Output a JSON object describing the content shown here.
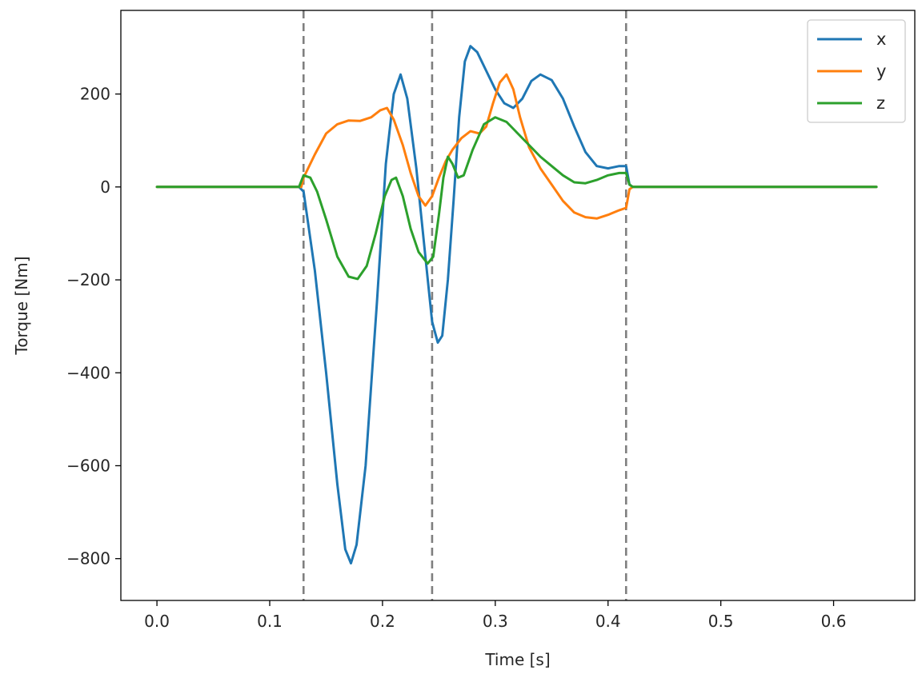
{
  "chart_data": {
    "type": "line",
    "title": "",
    "xlabel": "Time [s]",
    "ylabel": "Torque [Nm]",
    "xlim": [
      -0.032,
      0.672
    ],
    "ylim": [
      -890,
      380
    ],
    "xticks": [
      0.0,
      0.1,
      0.2,
      0.3,
      0.4,
      0.5,
      0.6
    ],
    "xtick_labels": [
      "0.0",
      "0.1",
      "0.2",
      "0.3",
      "0.4",
      "0.5",
      "0.6"
    ],
    "yticks": [
      -800,
      -600,
      -400,
      -200,
      0,
      200
    ],
    "ytick_labels": [
      "−800",
      "−600",
      "−400",
      "−200",
      "0",
      "200"
    ],
    "grid": false,
    "legend_position": "top-right",
    "vlines": [
      0.13,
      0.244,
      0.416
    ],
    "vline_color": "#7f7f7f",
    "series": [
      {
        "name": "x",
        "color": "#1f77b4",
        "points": [
          [
            0.0,
            0
          ],
          [
            0.126,
            0
          ],
          [
            0.13,
            -10
          ],
          [
            0.14,
            -180
          ],
          [
            0.15,
            -400
          ],
          [
            0.16,
            -640
          ],
          [
            0.167,
            -780
          ],
          [
            0.172,
            -810
          ],
          [
            0.177,
            -770
          ],
          [
            0.185,
            -600
          ],
          [
            0.195,
            -250
          ],
          [
            0.203,
            50
          ],
          [
            0.21,
            200
          ],
          [
            0.216,
            242
          ],
          [
            0.222,
            190
          ],
          [
            0.23,
            40
          ],
          [
            0.238,
            -150
          ],
          [
            0.244,
            -290
          ],
          [
            0.249,
            -335
          ],
          [
            0.253,
            -320
          ],
          [
            0.258,
            -200
          ],
          [
            0.263,
            -30
          ],
          [
            0.268,
            150
          ],
          [
            0.273,
            270
          ],
          [
            0.278,
            303
          ],
          [
            0.284,
            290
          ],
          [
            0.292,
            250
          ],
          [
            0.3,
            210
          ],
          [
            0.308,
            180
          ],
          [
            0.316,
            170
          ],
          [
            0.324,
            190
          ],
          [
            0.332,
            228
          ],
          [
            0.34,
            242
          ],
          [
            0.35,
            230
          ],
          [
            0.36,
            190
          ],
          [
            0.37,
            130
          ],
          [
            0.38,
            75
          ],
          [
            0.39,
            45
          ],
          [
            0.4,
            40
          ],
          [
            0.41,
            45
          ],
          [
            0.416,
            45
          ],
          [
            0.419,
            5
          ],
          [
            0.422,
            0
          ],
          [
            0.638,
            0
          ]
        ]
      },
      {
        "name": "y",
        "color": "#ff7f0e",
        "points": [
          [
            0.0,
            0
          ],
          [
            0.128,
            0
          ],
          [
            0.13,
            20
          ],
          [
            0.14,
            70
          ],
          [
            0.15,
            115
          ],
          [
            0.16,
            135
          ],
          [
            0.17,
            143
          ],
          [
            0.18,
            142
          ],
          [
            0.19,
            150
          ],
          [
            0.198,
            165
          ],
          [
            0.204,
            170
          ],
          [
            0.21,
            145
          ],
          [
            0.218,
            90
          ],
          [
            0.225,
            30
          ],
          [
            0.232,
            -20
          ],
          [
            0.238,
            -40
          ],
          [
            0.244,
            -20
          ],
          [
            0.25,
            20
          ],
          [
            0.256,
            55
          ],
          [
            0.262,
            80
          ],
          [
            0.27,
            105
          ],
          [
            0.278,
            120
          ],
          [
            0.286,
            115
          ],
          [
            0.292,
            130
          ],
          [
            0.298,
            180
          ],
          [
            0.304,
            225
          ],
          [
            0.31,
            242
          ],
          [
            0.316,
            210
          ],
          [
            0.322,
            150
          ],
          [
            0.33,
            85
          ],
          [
            0.34,
            40
          ],
          [
            0.35,
            5
          ],
          [
            0.36,
            -30
          ],
          [
            0.37,
            -55
          ],
          [
            0.38,
            -65
          ],
          [
            0.39,
            -68
          ],
          [
            0.4,
            -60
          ],
          [
            0.41,
            -50
          ],
          [
            0.416,
            -45
          ],
          [
            0.419,
            -5
          ],
          [
            0.422,
            0
          ],
          [
            0.638,
            0
          ]
        ]
      },
      {
        "name": "z",
        "color": "#2ca02c",
        "points": [
          [
            0.0,
            0
          ],
          [
            0.126,
            0
          ],
          [
            0.13,
            25
          ],
          [
            0.136,
            20
          ],
          [
            0.142,
            -10
          ],
          [
            0.15,
            -70
          ],
          [
            0.16,
            -150
          ],
          [
            0.17,
            -193
          ],
          [
            0.178,
            -198
          ],
          [
            0.186,
            -170
          ],
          [
            0.194,
            -100
          ],
          [
            0.202,
            -20
          ],
          [
            0.208,
            15
          ],
          [
            0.212,
            20
          ],
          [
            0.218,
            -20
          ],
          [
            0.225,
            -90
          ],
          [
            0.232,
            -140
          ],
          [
            0.24,
            -165
          ],
          [
            0.245,
            -150
          ],
          [
            0.25,
            -60
          ],
          [
            0.254,
            20
          ],
          [
            0.258,
            65
          ],
          [
            0.262,
            50
          ],
          [
            0.267,
            20
          ],
          [
            0.272,
            25
          ],
          [
            0.28,
            80
          ],
          [
            0.29,
            135
          ],
          [
            0.3,
            150
          ],
          [
            0.31,
            140
          ],
          [
            0.32,
            115
          ],
          [
            0.33,
            90
          ],
          [
            0.34,
            65
          ],
          [
            0.35,
            45
          ],
          [
            0.36,
            25
          ],
          [
            0.37,
            10
          ],
          [
            0.38,
            8
          ],
          [
            0.39,
            15
          ],
          [
            0.4,
            25
          ],
          [
            0.41,
            30
          ],
          [
            0.416,
            30
          ],
          [
            0.419,
            5
          ],
          [
            0.422,
            0
          ],
          [
            0.638,
            0
          ]
        ]
      }
    ]
  }
}
